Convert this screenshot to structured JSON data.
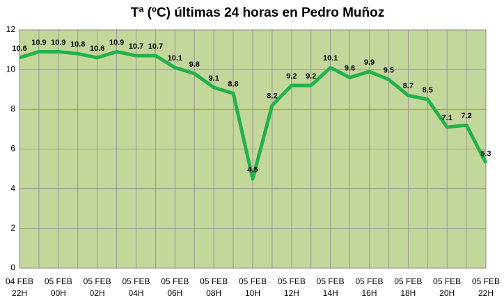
{
  "chart_data": {
    "type": "line",
    "title": "Tª (ºC) últimas 24 horas en Pedro Muñoz",
    "categories": [
      [
        "04 FEB",
        "22H"
      ],
      null,
      [
        "05 FEB",
        "00H"
      ],
      null,
      [
        "05 FEB",
        "02H"
      ],
      null,
      [
        "05 FEB",
        "04H"
      ],
      null,
      [
        "05 FEB",
        "06H"
      ],
      null,
      [
        "05 FEB",
        "08H"
      ],
      null,
      [
        "05 FEB",
        "10H"
      ],
      null,
      [
        "05 FEB",
        "12H"
      ],
      null,
      [
        "05 FEB",
        "14H"
      ],
      null,
      [
        "05 FEB",
        "16H"
      ],
      null,
      [
        "05 FEB",
        "18H"
      ],
      null,
      [
        "05 FEB",
        "20H"
      ],
      null,
      [
        "05 FEB",
        "22H"
      ]
    ],
    "values": [
      10.6,
      10.9,
      10.9,
      10.8,
      10.6,
      10.9,
      10.7,
      10.7,
      10.1,
      9.8,
      9.1,
      8.8,
      4.5,
      8.2,
      9.2,
      9.2,
      10.1,
      9.6,
      9.9,
      9.5,
      8.7,
      8.5,
      7.1,
      7.2,
      5.3
    ],
    "color": "#22b14c",
    "background": "#c4d79b",
    "ylim": [
      0,
      12
    ],
    "yticks": [
      0,
      2,
      4,
      6,
      8,
      10,
      12
    ],
    "grid": true
  }
}
